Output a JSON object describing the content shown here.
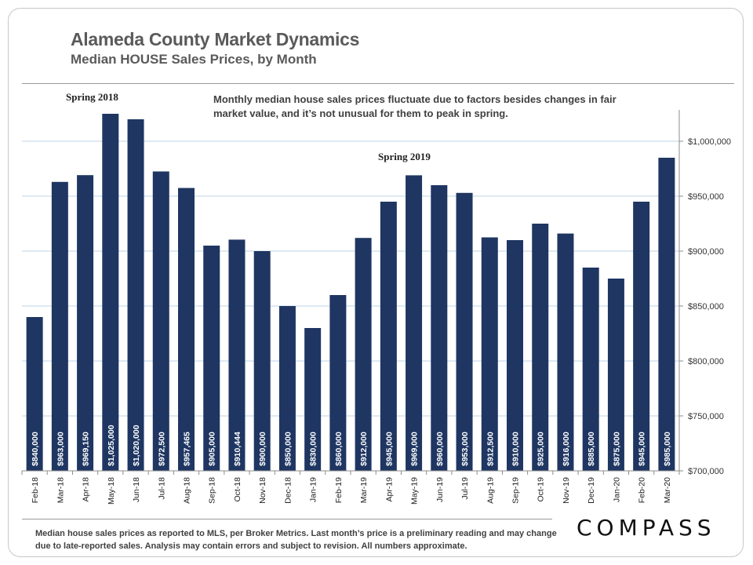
{
  "header": {
    "title": "Alameda County Market Dynamics",
    "subtitle": "Median HOUSE Sales Prices, by Month"
  },
  "annotation": "Monthly median house sales prices fluctuate due to factors besides changes in fair market value, and it’s not unusual for them to peak in spring.",
  "callouts": {
    "spring_2018": "Spring 2018",
    "spring_2019": "Spring 2019"
  },
  "footnote": "Median house sales prices as reported to MLS, per Broker Metrics. Last month’s price is a preliminary reading and may change due to late-reported sales. Analysis may contain errors and subject to revision. All numbers approximate.",
  "logo": "COMPASS",
  "colors": {
    "bar": "#1f3662",
    "grid": "#bcd3e6",
    "axis": "#8c8c8c"
  },
  "chart_data": {
    "type": "bar",
    "categories": [
      "Feb-18",
      "Mar-18",
      "Apr-18",
      "May-18",
      "Jun-18",
      "Jul-18",
      "Aug-18",
      "Sep-18",
      "Oct-18",
      "Nov-18",
      "Dec-18",
      "Jan-19",
      "Feb-19",
      "Mar-19",
      "Apr-19",
      "May-19",
      "Jun-19",
      "Jul-19",
      "Aug-19",
      "Sep-19",
      "Oct-19",
      "Nov-19",
      "Dec-19",
      "Jan-20",
      "Feb-20",
      "Mar-20"
    ],
    "values": [
      840000,
      963000,
      969150,
      1025000,
      1020000,
      972500,
      957465,
      905000,
      910444,
      900000,
      850000,
      830000,
      860000,
      912000,
      945000,
      969000,
      960000,
      953000,
      912500,
      910000,
      925000,
      916000,
      885000,
      875000,
      945000,
      985000
    ],
    "data_labels": [
      "$840,000",
      "$963,000",
      "$969,150",
      "$1,025,000",
      "$1,020,000",
      "$972,500",
      "$957,465",
      "$905,000",
      "$910,444",
      "$900,000",
      "$850,000",
      "$830,000",
      "$860,000",
      "$912,000",
      "$945,000",
      "$969,000",
      "$960,000",
      "$953,000",
      "$912,500",
      "$910,000",
      "$925,000",
      "$916,000",
      "$885,000",
      "$875,000",
      "$945,000",
      "$985,000"
    ],
    "ylim": [
      700000,
      1025000
    ],
    "yticks": [
      700000,
      750000,
      800000,
      850000,
      900000,
      950000,
      1000000
    ],
    "ytick_labels": [
      "$700,000",
      "$750,000",
      "$800,000",
      "$850,000",
      "$900,000",
      "$950,000",
      "$1,000,000"
    ],
    "y_axis_side": "right",
    "grid": true,
    "legend": "none"
  }
}
